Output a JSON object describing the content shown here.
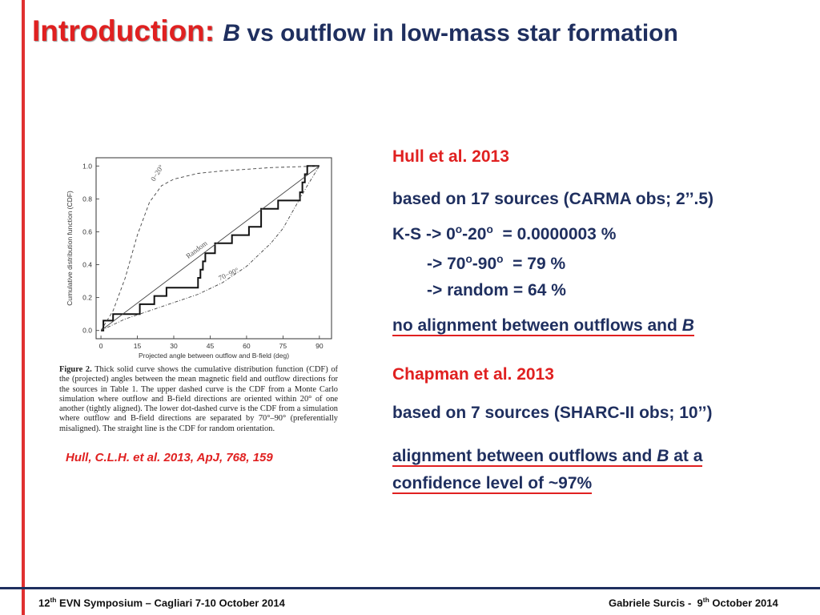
{
  "slide": {
    "title_red": "Introduction:",
    "title_b": "B",
    "title_rest": " vs outflow in low-mass star formation",
    "figure_caption_label": "Figure 2.",
    "figure_caption": " Thick solid curve shows the cumulative distribution function (CDF) of the (projected) angles between the mean magnetic field and outflow directions for the sources in Table 1. The upper dashed curve is the CDF from a Monte Carlo simulation where outflow and B-field directions are oriented within 20° of one another (tightly aligned). The lower dot-dashed curve is the CDF from a simulation where outflow and B-field directions are separated by 70°–90° (preferentially misaligned). The straight line is the CDF for random orientation.",
    "reference": "Hull, C.L.H. et al. 2013, ApJ, 768, 159",
    "hull_title": "Hull et al. 2013",
    "hull_line1": "based on 17 sources (CARMA obs; 2’’.5)",
    "ks_line_a": "K-S -> 0",
    "ks_line_b": "-20",
    "ks_line_c": "  = 0.0000003 %",
    "ks2_a": "-> 70",
    "ks2_b": "-90",
    "ks2_c": "  = 79 %",
    "ks3": "-> random = 64 %",
    "deg": "o",
    "no_align": "no alignment between outflows and ",
    "no_align_b": "B",
    "chapman_title": "Chapman et al. 2013",
    "chapman_line1": "based on 7 sources (SHARC-II obs; 10’’)",
    "align_a": "alignment between outflows and ",
    "align_b": "B",
    "align_c": " at a",
    "align_line2": "confidence level of ~97%",
    "footer_left_a": "12",
    "footer_left_sup": "th",
    "footer_left_b": " EVN Symposium – Cagliari 7-10 October 2014",
    "footer_right_a": "Gabriele Surcis -  9",
    "footer_right_sup": "th",
    "footer_right_b": " October 2014"
  },
  "chart_data": {
    "type": "line",
    "xlabel": "Projected angle between outflow and B-field (deg)",
    "ylabel": "Cumulative distribution function (CDF)",
    "xlim": [
      0,
      90
    ],
    "ylim": [
      0,
      1.0
    ],
    "x_ticks": [
      0,
      15,
      30,
      45,
      60,
      75,
      90
    ],
    "y_ticks": [
      "0.0",
      "0.2",
      "0.4",
      "0.6",
      "0.8",
      "1.0"
    ],
    "y_tick_values": [
      0,
      0.2,
      0.4,
      0.6,
      0.8,
      1.0
    ],
    "annotations": [
      {
        "text": "0−20°",
        "x": 24,
        "y": 0.95
      },
      {
        "text": "Random",
        "x": 40,
        "y": 0.48
      },
      {
        "text": "70−90°",
        "x": 53,
        "y": 0.33
      }
    ],
    "series": [
      {
        "style": "solid-thick",
        "x": [
          0,
          1,
          1,
          5,
          5,
          16,
          16,
          22,
          22,
          27,
          27,
          40,
          40,
          41,
          41,
          42,
          42,
          43,
          43,
          47,
          47,
          54,
          54,
          61,
          61,
          66,
          66,
          73,
          73,
          82,
          82,
          83,
          83,
          84,
          84,
          85,
          85,
          86,
          86,
          90
        ],
        "y": [
          0,
          0,
          0.06,
          0.06,
          0.1,
          0.1,
          0.16,
          0.16,
          0.21,
          0.21,
          0.26,
          0.26,
          0.32,
          0.32,
          0.37,
          0.37,
          0.42,
          0.42,
          0.47,
          0.47,
          0.53,
          0.53,
          0.58,
          0.58,
          0.63,
          0.63,
          0.74,
          0.74,
          0.79,
          0.79,
          0.84,
          0.84,
          0.9,
          0.9,
          0.95,
          0.95,
          1.0,
          1.0,
          1.0,
          1.0
        ]
      },
      {
        "style": "dashed",
        "x": [
          0,
          5,
          10,
          15,
          20,
          25,
          30,
          40,
          50,
          60,
          70,
          80,
          90
        ],
        "y": [
          0,
          0.12,
          0.32,
          0.58,
          0.78,
          0.88,
          0.92,
          0.955,
          0.97,
          0.98,
          0.99,
          0.995,
          1.0
        ]
      },
      {
        "style": "random",
        "x": [
          0,
          90
        ],
        "y": [
          0,
          1.0
        ]
      },
      {
        "style": "dashdot",
        "x": [
          0,
          10,
          20,
          30,
          40,
          50,
          60,
          70,
          75,
          80,
          85,
          90
        ],
        "y": [
          0,
          0.07,
          0.12,
          0.17,
          0.22,
          0.29,
          0.39,
          0.53,
          0.62,
          0.75,
          0.88,
          1.0
        ]
      }
    ]
  }
}
